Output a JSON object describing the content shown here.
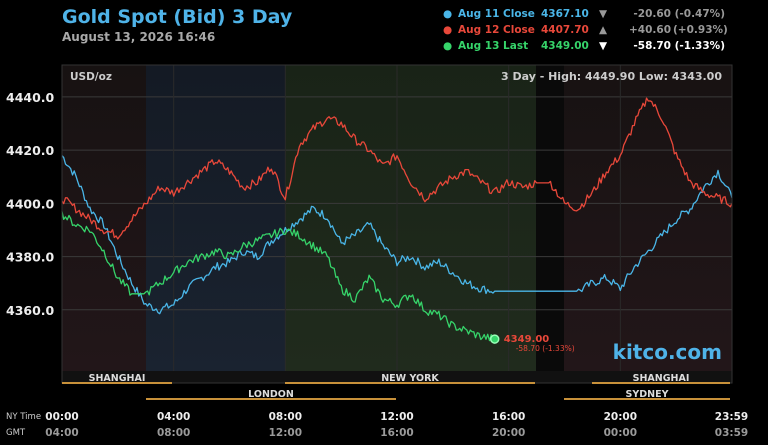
{
  "header": {
    "title": "Gold Spot (Bid) 3 Day",
    "datetime": "August 13, 2026 16:46"
  },
  "legend": [
    {
      "label": "Aug 11 Close",
      "price": "4367.10",
      "arrow": "▼",
      "change": "-20.60",
      "percent": "(-0.47%)",
      "color": "#4ab6e8"
    },
    {
      "label": "Aug 12 Close",
      "price": "4407.70",
      "arrow": "▲",
      "change": "+40.60",
      "percent": "(+0.93%)",
      "color": "#e8483a"
    },
    {
      "label": "Aug 13 Last",
      "price": "4349.00",
      "arrow": "▼",
      "change": "-58.70",
      "percent": "(-1.33%)",
      "color": "#36d46a"
    }
  ],
  "panel": {
    "unit": "USD/oz",
    "range_text": "3 Day - High: 4449.90  Low: 4343.00",
    "last_price": "4349.00",
    "last_change": "-58.70 (-1.33%)",
    "watermark": "kitco.com"
  },
  "sessions": {
    "row1": [
      "SHANGHAI",
      "NEW YORK",
      "SHANGHAI"
    ],
    "row2": [
      "LONDON",
      "SYDNEY"
    ]
  },
  "time_axis": {
    "label_ny": "NY Time",
    "label_gmt": "GMT",
    "ny": [
      "00:00",
      "04:00",
      "08:00",
      "12:00",
      "16:00",
      "20:00",
      "23:59"
    ],
    "gmt": [
      "04:00",
      "08:00",
      "12:00",
      "16:00",
      "20:00",
      "00:00",
      "03:59"
    ]
  },
  "chart_data": {
    "type": "line",
    "xlabel": "",
    "ylabel": "USD/oz",
    "ylim": [
      4337,
      4452
    ],
    "yticks": [
      "4440.0",
      "4420.0",
      "4400.0",
      "4380.0",
      "4360.0"
    ],
    "x_hours": [
      0,
      0.5,
      1,
      1.5,
      2,
      2.5,
      3,
      3.5,
      4,
      4.5,
      5,
      5.5,
      6,
      6.5,
      7,
      7.5,
      8,
      8.5,
      9,
      9.5,
      10,
      10.5,
      11,
      11.5,
      12,
      12.5,
      13,
      13.5,
      14,
      14.5,
      15,
      15.5,
      16,
      16.5,
      17,
      17.5,
      18,
      18.5,
      19,
      19.5,
      20,
      20.5,
      21,
      21.5,
      22,
      22.5,
      23,
      23.5,
      24
    ],
    "high": 4449.9,
    "low": 4343.0,
    "series": [
      {
        "name": "Aug 11 Close",
        "color": "#4ab6e8",
        "values": [
          4418,
          4410,
          4398,
          4392,
          4380,
          4370,
          4362,
          4360,
          4362,
          4368,
          4372,
          4376,
          4378,
          4382,
          4380,
          4386,
          4390,
          4394,
          4398,
          4395,
          4385,
          4388,
          4392,
          4384,
          4378,
          4380,
          4376,
          4378,
          4374,
          4370,
          4368,
          4367,
          4367,
          4367,
          4367,
          4367,
          4367,
          4367,
          4370,
          4372,
          4368,
          4376,
          4382,
          4388,
          4394,
          4398,
          4406,
          4412,
          4402
        ]
      },
      {
        "name": "Aug 12 Close",
        "color": "#e8483a",
        "values": [
          4402,
          4398,
          4394,
          4390,
          4388,
          4394,
          4400,
          4406,
          4404,
          4408,
          4412,
          4416,
          4412,
          4406,
          4408,
          4414,
          4402,
          4422,
          4428,
          4432,
          4430,
          4424,
          4420,
          4414,
          4418,
          4408,
          4402,
          4406,
          4410,
          4412,
          4408,
          4404,
          4408,
          4406,
          4407.7,
          4407.7,
          4400,
          4398,
          4404,
          4412,
          4418,
          4430,
          4440,
          4432,
          4418,
          4408,
          4404,
          4402,
          4400
        ]
      },
      {
        "name": "Aug 13 Last",
        "color": "#36d46a",
        "values": [
          4396,
          4392,
          4390,
          4382,
          4372,
          4366,
          4366,
          4370,
          4374,
          4378,
          4380,
          4382,
          4380,
          4384,
          4386,
          4388,
          4390,
          4388,
          4384,
          4380,
          4368,
          4364,
          4372,
          4364,
          4362,
          4366,
          4360,
          4358,
          4354,
          4352,
          4350,
          4349
        ]
      }
    ]
  }
}
